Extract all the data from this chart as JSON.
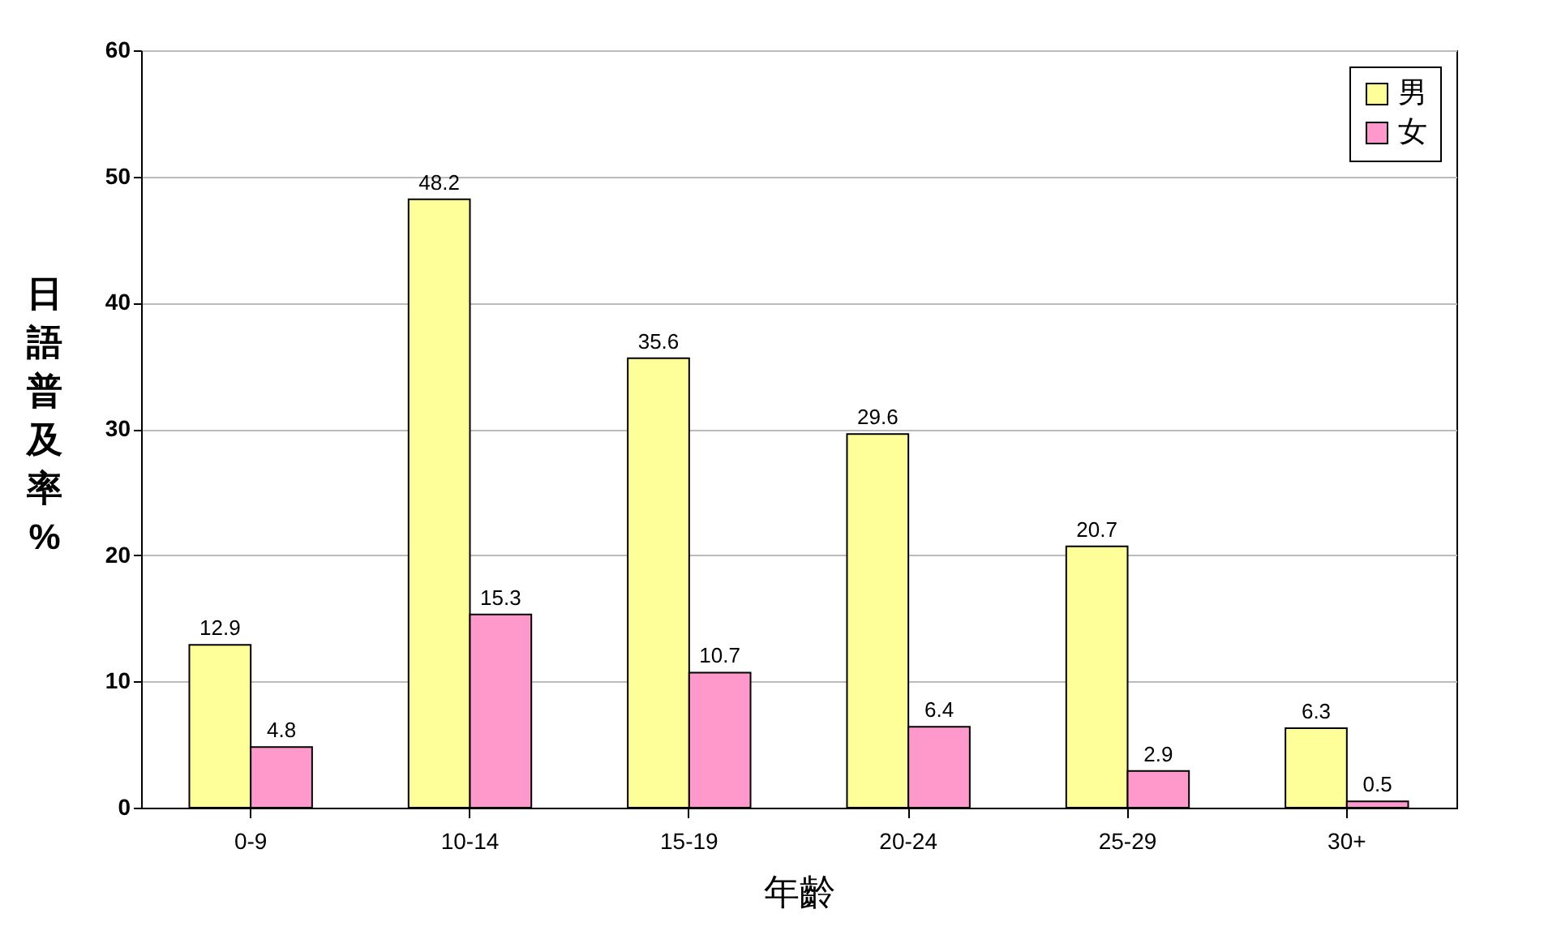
{
  "chart_data": {
    "type": "bar",
    "xlabel": "年齡",
    "ylabel": "日語普及率%",
    "categories": [
      "0-9",
      "10-14",
      "15-19",
      "20-24",
      "25-29",
      "30+"
    ],
    "series": [
      {
        "name": "男",
        "color": "#ffff99",
        "values": [
          12.9,
          48.2,
          35.6,
          29.6,
          20.7,
          6.3
        ]
      },
      {
        "name": "女",
        "color": "#ff99cc",
        "values": [
          4.8,
          15.3,
          10.7,
          6.4,
          2.9,
          0.5
        ]
      }
    ],
    "ylim": [
      0,
      60
    ],
    "yticks": [
      0,
      10,
      20,
      30,
      40,
      50,
      60
    ],
    "grid": "y",
    "legend": "top right",
    "data_labels": true
  }
}
